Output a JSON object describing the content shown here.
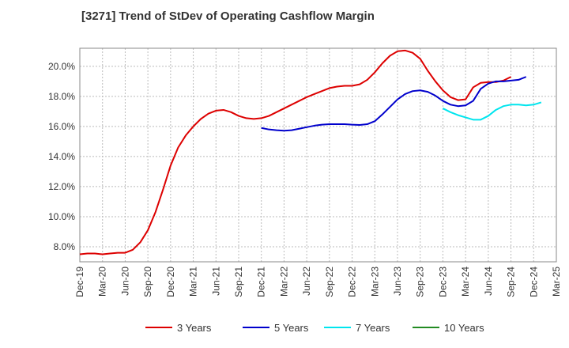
{
  "chart_data": {
    "type": "line",
    "title": "[3271]  Trend of StDev of Operating Cashflow Margin",
    "xlabel": "",
    "ylabel": "",
    "ylim": [
      7.0,
      21.2
    ],
    "yticks": [
      8.0,
      10.0,
      12.0,
      14.0,
      16.0,
      18.0,
      20.0
    ],
    "ytick_labels": [
      "8.0%",
      "10.0%",
      "12.0%",
      "14.0%",
      "16.0%",
      "18.0%",
      "20.0%"
    ],
    "x_tick_labels": [
      "Dec-19",
      "Mar-20",
      "Jun-20",
      "Sep-20",
      "Dec-20",
      "Mar-21",
      "Jun-21",
      "Sep-21",
      "Dec-21",
      "Mar-22",
      "Jun-22",
      "Sep-22",
      "Dec-22",
      "Mar-23",
      "Jun-23",
      "Sep-23",
      "Dec-23",
      "Mar-24",
      "Jun-24",
      "Sep-24",
      "Dec-24",
      "Mar-25"
    ],
    "grid": true,
    "legend_position": "bottom",
    "series": [
      {
        "name": "3 Years",
        "color": "#dd0000",
        "start": 0,
        "values": [
          7.5,
          7.55,
          7.55,
          7.5,
          7.55,
          7.6,
          7.6,
          7.8,
          8.3,
          9.1,
          10.3,
          11.8,
          13.4,
          14.6,
          15.4,
          16.0,
          16.5,
          16.85,
          17.05,
          17.1,
          16.95,
          16.7,
          16.55,
          16.5,
          16.55,
          16.7,
          16.95,
          17.2,
          17.45,
          17.7,
          17.95,
          18.15,
          18.35,
          18.55,
          18.65,
          18.7,
          18.7,
          18.8,
          19.1,
          19.6,
          20.2,
          20.7,
          21.0,
          21.05,
          20.9,
          20.5,
          19.7,
          19.0,
          18.4,
          17.95,
          17.75,
          17.8,
          18.6,
          18.9,
          18.95,
          18.95,
          19.05,
          19.3
        ]
      },
      {
        "name": "5 Years",
        "color": "#0000cc",
        "start": 24,
        "values": [
          15.9,
          15.8,
          15.75,
          15.72,
          15.75,
          15.85,
          15.95,
          16.05,
          16.12,
          16.15,
          16.15,
          16.15,
          16.12,
          16.1,
          16.15,
          16.35,
          16.8,
          17.3,
          17.8,
          18.15,
          18.35,
          18.4,
          18.3,
          18.05,
          17.7,
          17.45,
          17.35,
          17.4,
          17.7,
          18.5,
          18.85,
          19.0,
          19.0,
          19.05,
          19.1,
          19.3
        ]
      },
      {
        "name": "7 Years",
        "color": "#00e5ee",
        "start": 48,
        "values": [
          17.2,
          16.95,
          16.75,
          16.6,
          16.45,
          16.45,
          16.7,
          17.1,
          17.35,
          17.45,
          17.45,
          17.4,
          17.45,
          17.6
        ]
      },
      {
        "name": "10 Years",
        "color": "#228b22",
        "start": 0,
        "values": []
      }
    ]
  }
}
